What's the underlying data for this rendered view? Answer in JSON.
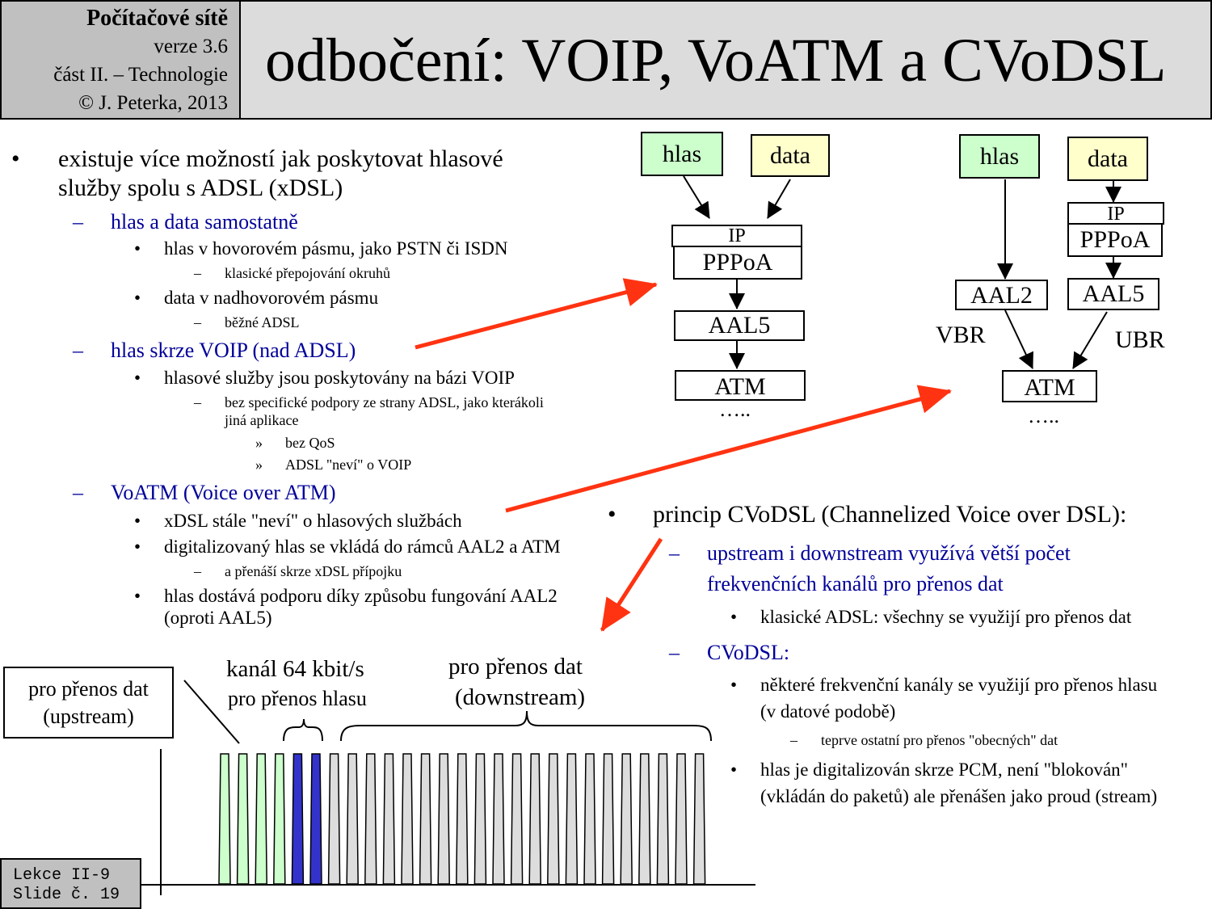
{
  "header": {
    "course": "Počítačové sítě",
    "version": "verze 3.6",
    "part": "část II. – Technologie",
    "author": "© J. Peterka, 2013",
    "title": "odbočení: VOIP, VoATM a CVoDSL"
  },
  "footer": {
    "line1": "Lekce II-9",
    "line2": "Slide č. 19"
  },
  "left": {
    "intro_line1": "existuje více možností jak poskytovat hlasové",
    "intro_line2": "služby spolu s ADSL (xDSL)",
    "s1": "hlas a data samostatně",
    "s1_b1": "hlas v hovorovém pásmu, jako PSTN či ISDN",
    "s1_b1_d1": "klasické přepojování okruhů",
    "s1_b2": "data v nadhovorovém pásmu",
    "s1_b2_d1": "běžné ADSL",
    "s2": "hlas skrze VOIP (nad ADSL)",
    "s2_b1": "hlasové služby jsou poskytovány na bázi VOIP",
    "s2_b1_d1a": "bez specifické podpory ze strany ADSL, jako kterákoli",
    "s2_b1_d1b": "jiná aplikace",
    "s2_r1": "bez QoS",
    "s2_r2": "ADSL \"neví\" o VOIP",
    "s3": "VoATM (Voice over ATM)",
    "s3_b1": "xDSL stále \"neví\" o hlasových službách",
    "s3_b2": "digitalizovaný hlas se vkládá do rámců AAL2 a ATM",
    "s3_b2_d1": "a přenáší skrze xDSL přípojku",
    "s3_b3a": "hlas dostává podporu díky způsobu fungování AAL2",
    "s3_b3b": "(oproti AAL5)"
  },
  "right": {
    "main": "princip CVoDSL (Channelized Voice over DSL):",
    "s1a": "upstream i downstream využívá větší počet",
    "s1b": "frekvenčních kanálů pro přenos dat",
    "s1_b1": "klasické ADSL: všechny se využijí pro přenos dat",
    "s2": "CVoDSL:",
    "s2_b1a": "některé frekvenční kanály se využijí pro přenos hlasu",
    "s2_b1b": "(v datové podobě)",
    "s2_b1_d1": "teprve ostatní pro přenos \"obecných\" dat",
    "s2_b2a": "hlas je digitalizován skrze PCM, není \"blokován\"",
    "s2_b2b": "(vkládán do paketů) ale přenášen jako proud (stream)"
  },
  "markers": {
    "bullet": "•",
    "dash": "–",
    "raquo": "»"
  },
  "diagram1": {
    "hlas": "hlas",
    "data": "data",
    "ip": "IP",
    "pppoa": "PPPoA",
    "aal5": "AAL5",
    "atm": "ATM",
    "dots": "….."
  },
  "diagram2": {
    "hlas": "hlas",
    "data": "data",
    "ip": "IP",
    "pppoa": "PPPoA",
    "aal2": "AAL2",
    "aal5": "AAL5",
    "atm": "ATM",
    "vbr": "VBR",
    "ubr": "UBR",
    "dots": "….."
  },
  "spectrum": {
    "upstream_line1": "pro přenos dat",
    "upstream_line2": "(upstream)",
    "voice_line1": "kanál 64 kbit/s",
    "voice_line2": "pro přenos hlasu",
    "down_line1": "pro přenos dat",
    "down_line2": "(downstream)",
    "channels": [
      "upstream",
      "upstream",
      "upstream",
      "upstream",
      "voice",
      "voice",
      "downstream",
      "downstream",
      "downstream",
      "downstream",
      "downstream",
      "downstream",
      "downstream",
      "downstream",
      "downstream",
      "downstream",
      "downstream",
      "downstream",
      "downstream",
      "downstream",
      "downstream",
      "downstream",
      "downstream",
      "downstream",
      "downstream",
      "downstream",
      "downstream"
    ],
    "colors": {
      "upstream": "#ccffcc",
      "voice": "#3333cc",
      "downstream": "#dddddd",
      "arrow": "#ff3311"
    }
  }
}
